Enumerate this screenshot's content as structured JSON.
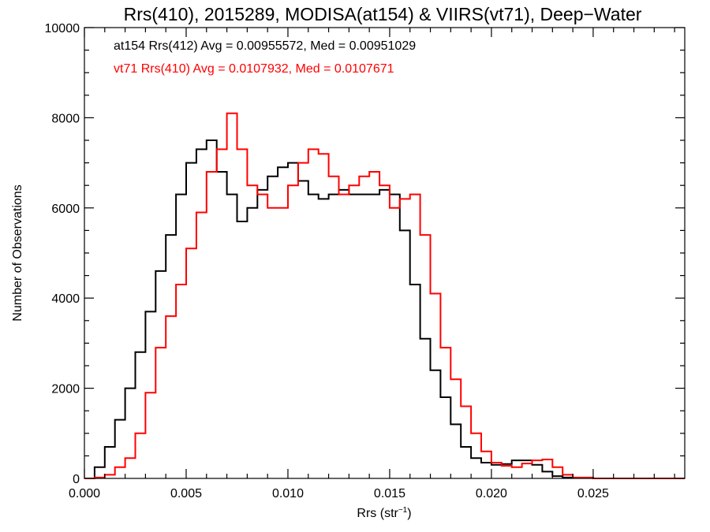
{
  "chart_data": {
    "type": "line",
    "title": "Rrs(410), 2015289, MODISA(at154) & VIIRS(vt71), Deep−Water",
    "xlabel": "Rrs (str",
    "xlabel_sup": "−1",
    "xlabel_end": ")",
    "ylabel": "Number of Observations",
    "xlim": [
      0.0,
      0.0295
    ],
    "ylim": [
      0,
      10000
    ],
    "xticks": [
      0.0,
      0.005,
      0.01,
      0.015,
      0.02,
      0.025
    ],
    "xtick_labels": [
      "0.000",
      "0.005",
      "0.010",
      "0.015",
      "0.020",
      "0.025"
    ],
    "yticks": [
      0,
      2000,
      4000,
      6000,
      8000,
      10000
    ],
    "ytick_labels": [
      "0",
      "2000",
      "4000",
      "6000",
      "8000",
      "10000"
    ],
    "grid": false,
    "legend_position": "top-left",
    "series": [
      {
        "name": "at154 Rrs(412) Avg = 0.00955572, Med = 0.00951029",
        "color": "#000000",
        "x": [
          0.0,
          0.0005,
          0.001,
          0.0015,
          0.002,
          0.0025,
          0.003,
          0.0035,
          0.004,
          0.0045,
          0.005,
          0.0055,
          0.006,
          0.0065,
          0.007,
          0.0075,
          0.008,
          0.0085,
          0.009,
          0.0095,
          0.01,
          0.0105,
          0.011,
          0.0115,
          0.012,
          0.0125,
          0.013,
          0.0135,
          0.014,
          0.0145,
          0.015,
          0.0155,
          0.016,
          0.0165,
          0.017,
          0.0175,
          0.018,
          0.0185,
          0.019,
          0.0195,
          0.02,
          0.0205,
          0.021,
          0.0215,
          0.022,
          0.0225,
          0.023,
          0.0235,
          0.024,
          0.025,
          0.0295
        ],
        "y": [
          0,
          250,
          700,
          1300,
          2000,
          2800,
          3700,
          4600,
          5400,
          6300,
          7000,
          7300,
          7500,
          6800,
          6300,
          5700,
          6000,
          6400,
          6700,
          6900,
          7000,
          6600,
          6300,
          6200,
          6300,
          6400,
          6300,
          6300,
          6300,
          6400,
          6300,
          5500,
          4300,
          3100,
          2400,
          1800,
          1200,
          700,
          450,
          350,
          300,
          320,
          400,
          400,
          300,
          150,
          50,
          20,
          10,
          0,
          0
        ]
      },
      {
        "name": "vt71 Rrs(410) Avg = 0.0107932, Med = 0.0107671",
        "color": "#ff0000",
        "x": [
          0.0,
          0.0005,
          0.001,
          0.0015,
          0.002,
          0.0025,
          0.003,
          0.0035,
          0.004,
          0.0045,
          0.005,
          0.0055,
          0.006,
          0.0065,
          0.007,
          0.0075,
          0.008,
          0.0085,
          0.009,
          0.0095,
          0.01,
          0.0105,
          0.011,
          0.0115,
          0.012,
          0.0125,
          0.013,
          0.0135,
          0.014,
          0.0145,
          0.015,
          0.0155,
          0.016,
          0.0165,
          0.017,
          0.0175,
          0.018,
          0.0185,
          0.019,
          0.0195,
          0.02,
          0.0205,
          0.021,
          0.0215,
          0.022,
          0.0225,
          0.023,
          0.0235,
          0.024,
          0.025,
          0.0295
        ],
        "y": [
          0,
          20,
          80,
          250,
          450,
          1000,
          1900,
          2900,
          3600,
          4300,
          5100,
          5900,
          6800,
          7300,
          8100,
          7300,
          6500,
          6300,
          6000,
          6000,
          6500,
          7000,
          7300,
          7200,
          6700,
          6300,
          6500,
          6700,
          6800,
          6500,
          6000,
          6200,
          6300,
          5400,
          4100,
          2900,
          2200,
          1600,
          1000,
          600,
          350,
          280,
          250,
          330,
          400,
          420,
          250,
          80,
          20,
          0,
          0
        ]
      }
    ]
  }
}
